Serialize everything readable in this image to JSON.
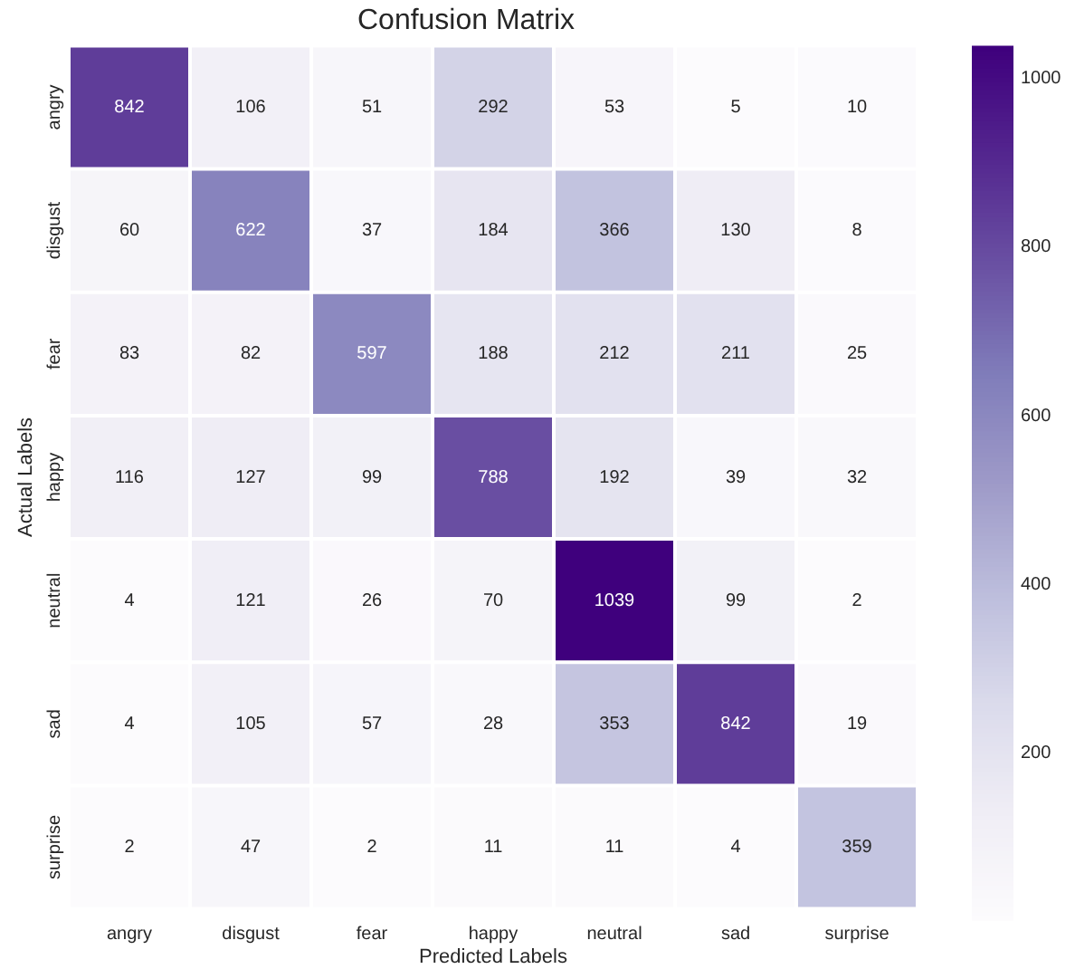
{
  "chart_data": {
    "type": "heatmap",
    "title": "Confusion Matrix",
    "xlabel": "Predicted Labels",
    "ylabel": "Actual Labels",
    "categories": [
      "angry",
      "disgust",
      "fear",
      "happy",
      "neutral",
      "sad",
      "surprise"
    ],
    "y_categories": [
      "angry",
      "disgust",
      "fear",
      "happy",
      "neutral",
      "sad",
      "surprise"
    ],
    "cells": [
      [
        842,
        106,
        51,
        292,
        53,
        5,
        10
      ],
      [
        60,
        622,
        37,
        184,
        366,
        130,
        8
      ],
      [
        83,
        82,
        597,
        188,
        212,
        211,
        25
      ],
      [
        116,
        127,
        99,
        788,
        192,
        39,
        32
      ],
      [
        4,
        121,
        26,
        70,
        1039,
        99,
        2
      ],
      [
        4,
        105,
        57,
        28,
        353,
        842,
        19
      ],
      [
        2,
        47,
        2,
        11,
        11,
        4,
        359
      ]
    ],
    "clim": [
      2,
      1039
    ],
    "cticks": [
      200,
      400,
      600,
      800,
      1000
    ],
    "data_labels": true
  }
}
